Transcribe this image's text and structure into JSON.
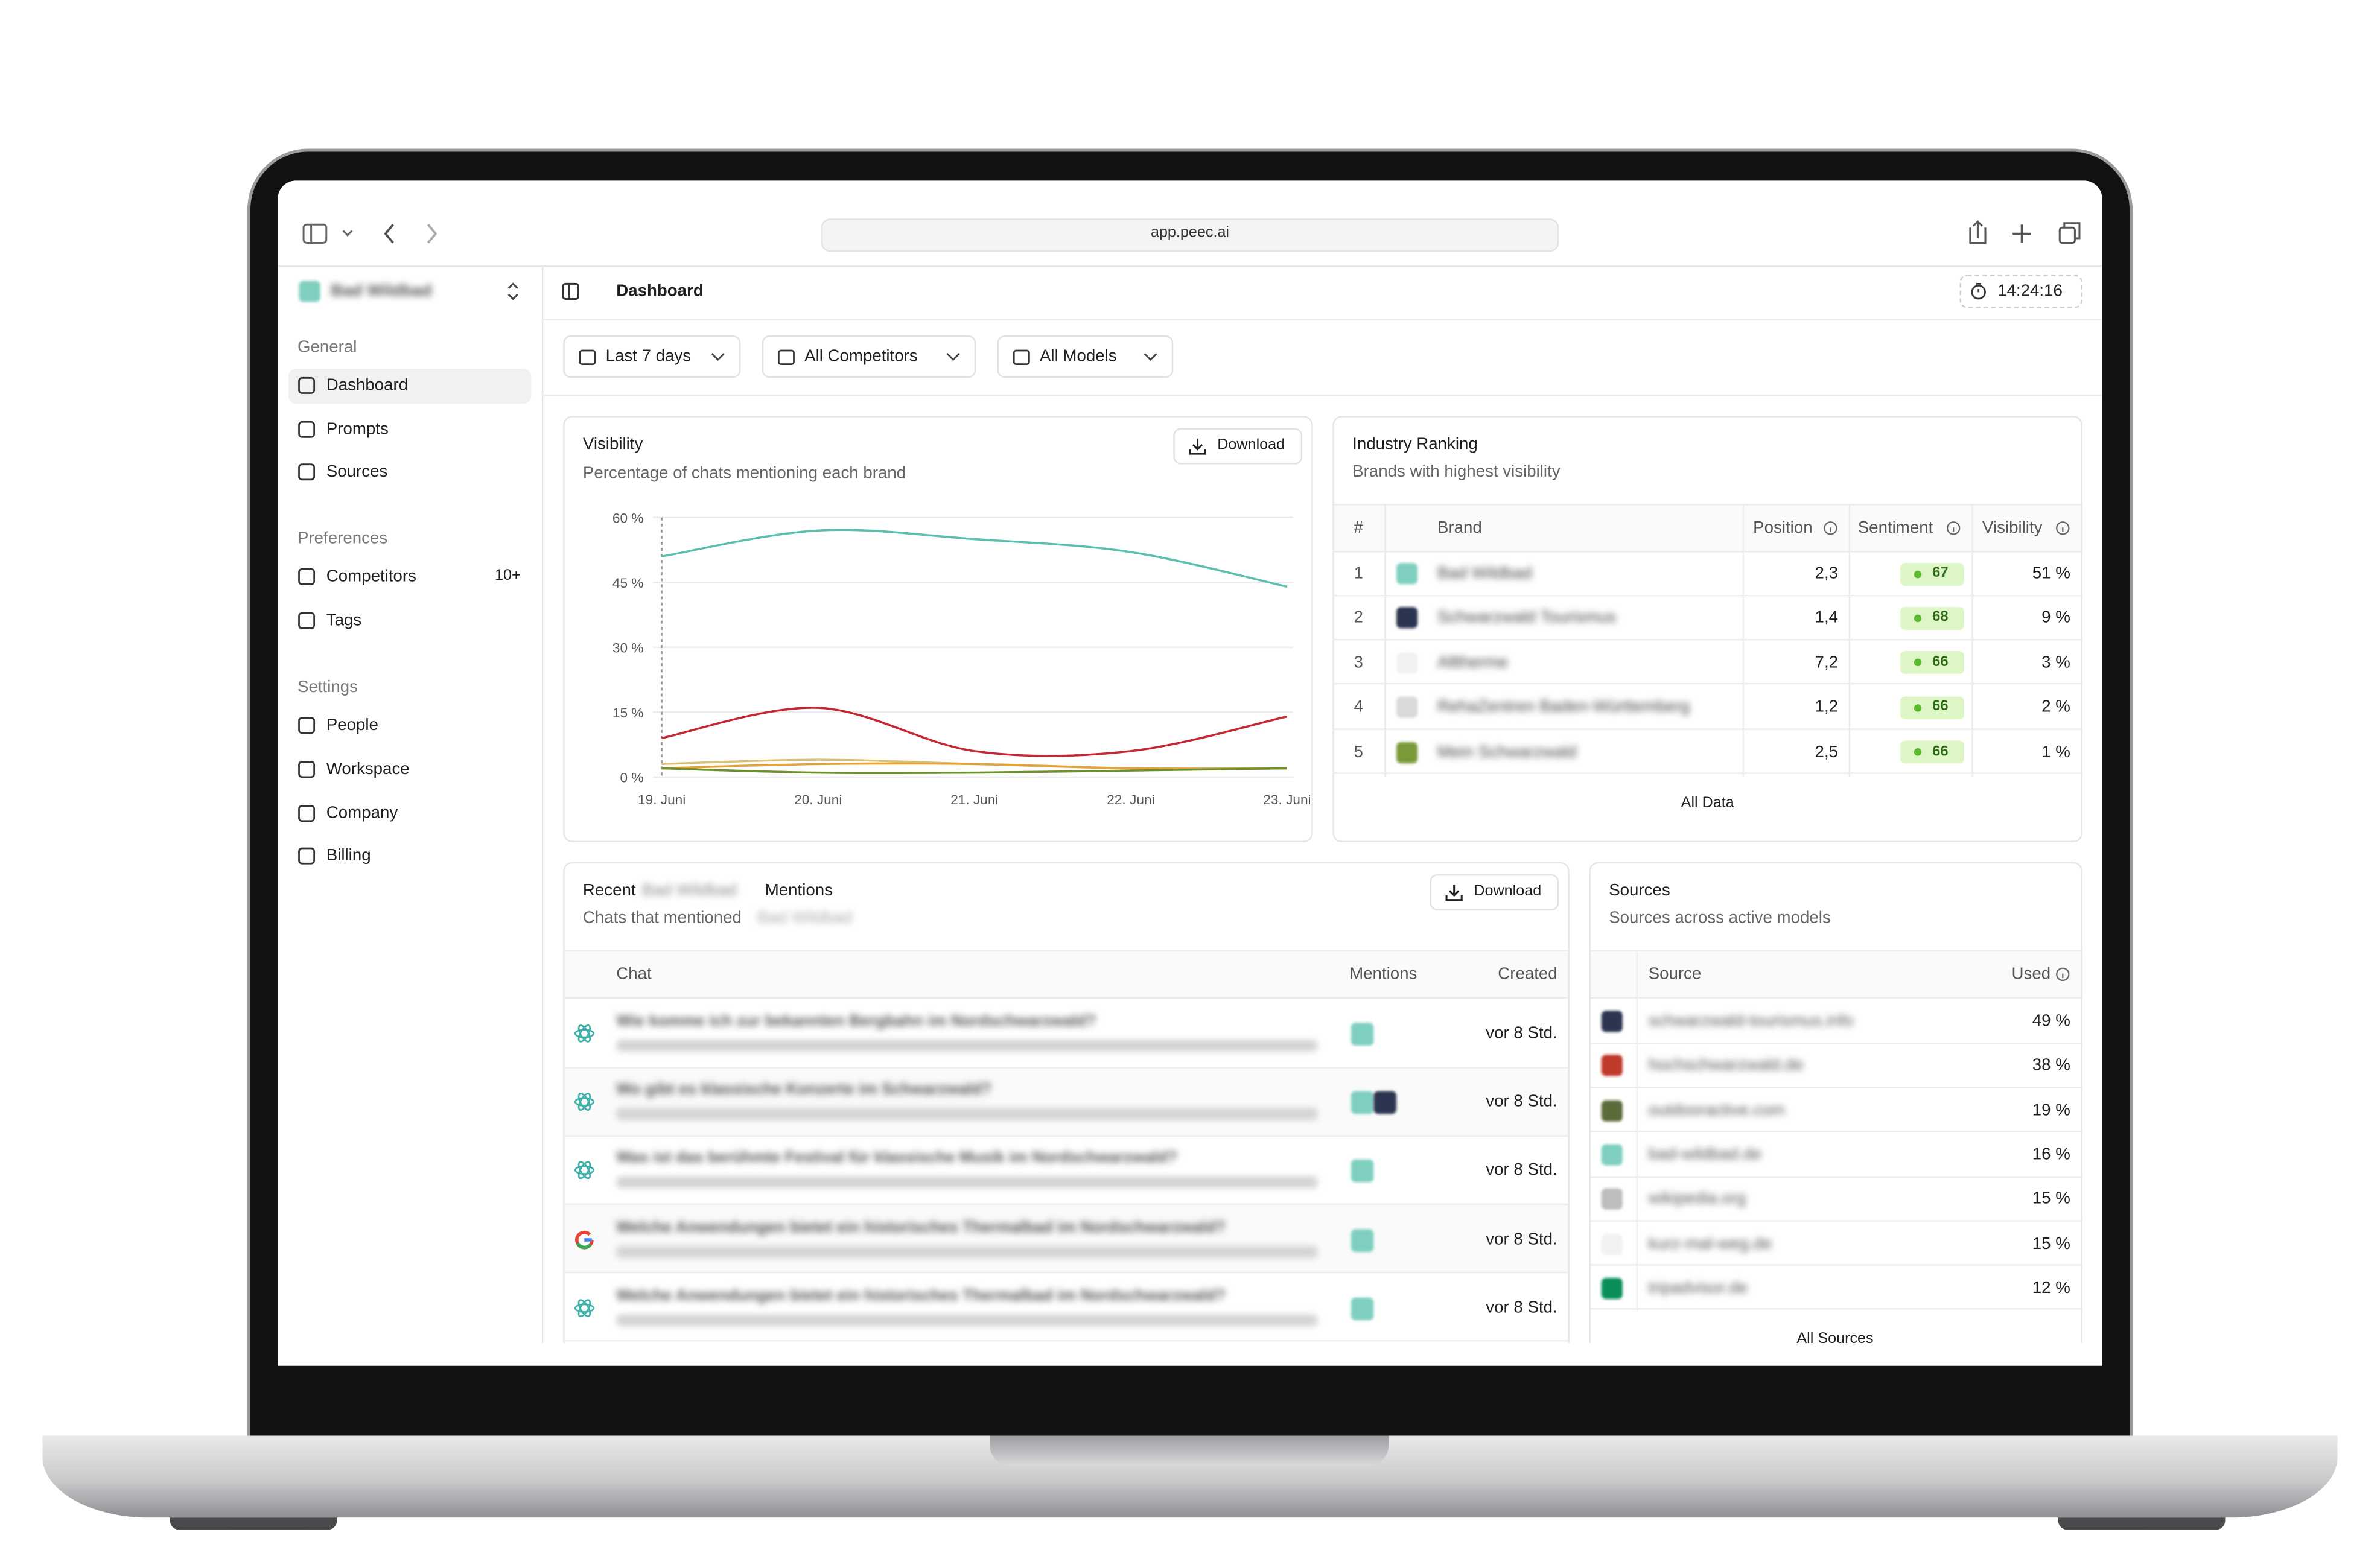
{
  "browser": {
    "url": "app.peec.ai"
  },
  "sidebar": {
    "workspace": "Bad Wildbad",
    "sections": [
      {
        "title": "General",
        "items": [
          {
            "label": "Dashboard"
          },
          {
            "label": "Prompts"
          },
          {
            "label": "Sources"
          }
        ]
      },
      {
        "title": "Preferences",
        "items": [
          {
            "label": "Competitors",
            "badge": "10+"
          },
          {
            "label": "Tags"
          }
        ]
      },
      {
        "title": "Settings",
        "items": [
          {
            "label": "People"
          },
          {
            "label": "Workspace"
          },
          {
            "label": "Company"
          },
          {
            "label": "Billing"
          }
        ]
      }
    ]
  },
  "header": {
    "title": "Dashboard",
    "timer": "14:24:16"
  },
  "filters": [
    "Last 7 days",
    "All Competitors",
    "All Models"
  ],
  "visibility": {
    "title": "Visibility",
    "subtitle": "Percentage of chats mentioning each brand",
    "download": "Download",
    "chart_data": {
      "type": "line",
      "categories": [
        "19. Juni",
        "20. Juni",
        "21. Juni",
        "22. Juni",
        "23. Juni"
      ],
      "series": [
        {
          "color": "#5bbfae",
          "values": [
            51,
            57,
            55,
            52,
            44
          ]
        },
        {
          "color": "#c62833",
          "values": [
            9,
            16,
            6,
            6,
            14
          ]
        },
        {
          "color": "#d8c27a",
          "values": [
            3,
            4,
            3,
            2,
            2
          ]
        },
        {
          "color": "#e3a23a",
          "values": [
            2,
            3,
            3,
            2,
            2
          ]
        },
        {
          "color": "#6e8f2e",
          "values": [
            2,
            1,
            1,
            1.5,
            2
          ]
        }
      ],
      "ylim": [
        0,
        60
      ],
      "yticks": [
        {
          "value": 0,
          "label": "0 %"
        },
        {
          "value": 15,
          "label": "15 %"
        },
        {
          "value": 30,
          "label": "30 %"
        },
        {
          "value": 45,
          "label": "45 %"
        },
        {
          "value": 60,
          "label": "60 %"
        }
      ],
      "grid": true
    }
  },
  "ranking": {
    "title": "Industry Ranking",
    "subtitle": "Brands with highest visibility",
    "columns": [
      "#",
      "Brand",
      "Position",
      "Sentiment",
      "Visibility"
    ],
    "rows": [
      {
        "cells": [
          "1",
          "Bad Wildbad",
          "2,3",
          "67",
          "51 %"
        ],
        "color": "#7fcfc0"
      },
      {
        "cells": [
          "2",
          "Schwarzwald Tourismus",
          "1,4",
          "68",
          "9 %"
        ],
        "color": "#2b3550"
      },
      {
        "cells": [
          "3",
          "Alltherme",
          "7,2",
          "66",
          "3 %"
        ],
        "color": "#f1f1f1"
      },
      {
        "cells": [
          "4",
          "RehaZentren Baden-Württemberg",
          "1,2",
          "66",
          "2 %"
        ],
        "color": "#d9d9d9"
      },
      {
        "cells": [
          "5",
          "Mein Schwarzwald",
          "2,5",
          "66",
          "1 %"
        ],
        "color": "#7a9a3a"
      }
    ],
    "footer": "All Data"
  },
  "mentions": {
    "title_before": "Recent",
    "brand": "Bad Wildbad",
    "title_after": "Mentions",
    "subtitle": "Chats that mentioned",
    "download": "Download",
    "columns": [
      "Chat",
      "Mentions",
      "Created"
    ],
    "rows": [
      {
        "chat": "Wie komme ich zur bekannten Bergbahn im Nordschwarzwald?",
        "colors": [
          "#7fcfc0"
        ],
        "created": "vor 8 Std."
      },
      {
        "chat": "Wo gibt es klassische Konzerte im Schwarzwald?",
        "colors": [
          "#7fcfc0",
          "#2b3550"
        ],
        "created": "vor 8 Std."
      },
      {
        "chat": "Was ist das berühmte Festival für klassische Musik im Nordschwarzwald?",
        "colors": [
          "#7fcfc0"
        ],
        "created": "vor 8 Std."
      },
      {
        "chat": "Welche Anwendungen bietet ein historisches Thermalbad im Nordschwarzwald?",
        "colors": [
          "#7fcfc0"
        ],
        "created": "vor 8 Std."
      },
      {
        "chat": "Welche Anwendungen bietet ein historisches Thermalbad im Nordschwarzwald?",
        "colors": [
          "#7fcfc0"
        ],
        "created": "vor 8 Std."
      }
    ]
  },
  "sources": {
    "title": "Sources",
    "subtitle": "Sources across active models",
    "columns": [
      "Source",
      "Used"
    ],
    "rows": [
      {
        "cells": [
          "schwarzwald-tourismus.info",
          "49 %"
        ],
        "color": "#2b3550"
      },
      {
        "cells": [
          "hochschwarzwald.de",
          "38 %"
        ],
        "color": "#c0392b"
      },
      {
        "cells": [
          "outdooractive.com",
          "19 %"
        ],
        "color": "#5b6b3a"
      },
      {
        "cells": [
          "bad-wildbad.de",
          "16 %"
        ],
        "color": "#7fcfc0"
      },
      {
        "cells": [
          "wikipedia.org",
          "15 %"
        ],
        "color": "#bdbdbd"
      },
      {
        "cells": [
          "kurz-mal-weg.de",
          "15 %"
        ],
        "color": "#f1f1f1"
      },
      {
        "cells": [
          "tripadvisor.de",
          "12 %"
        ],
        "color": "#0a8f5a"
      }
    ],
    "footer": "All Sources"
  }
}
